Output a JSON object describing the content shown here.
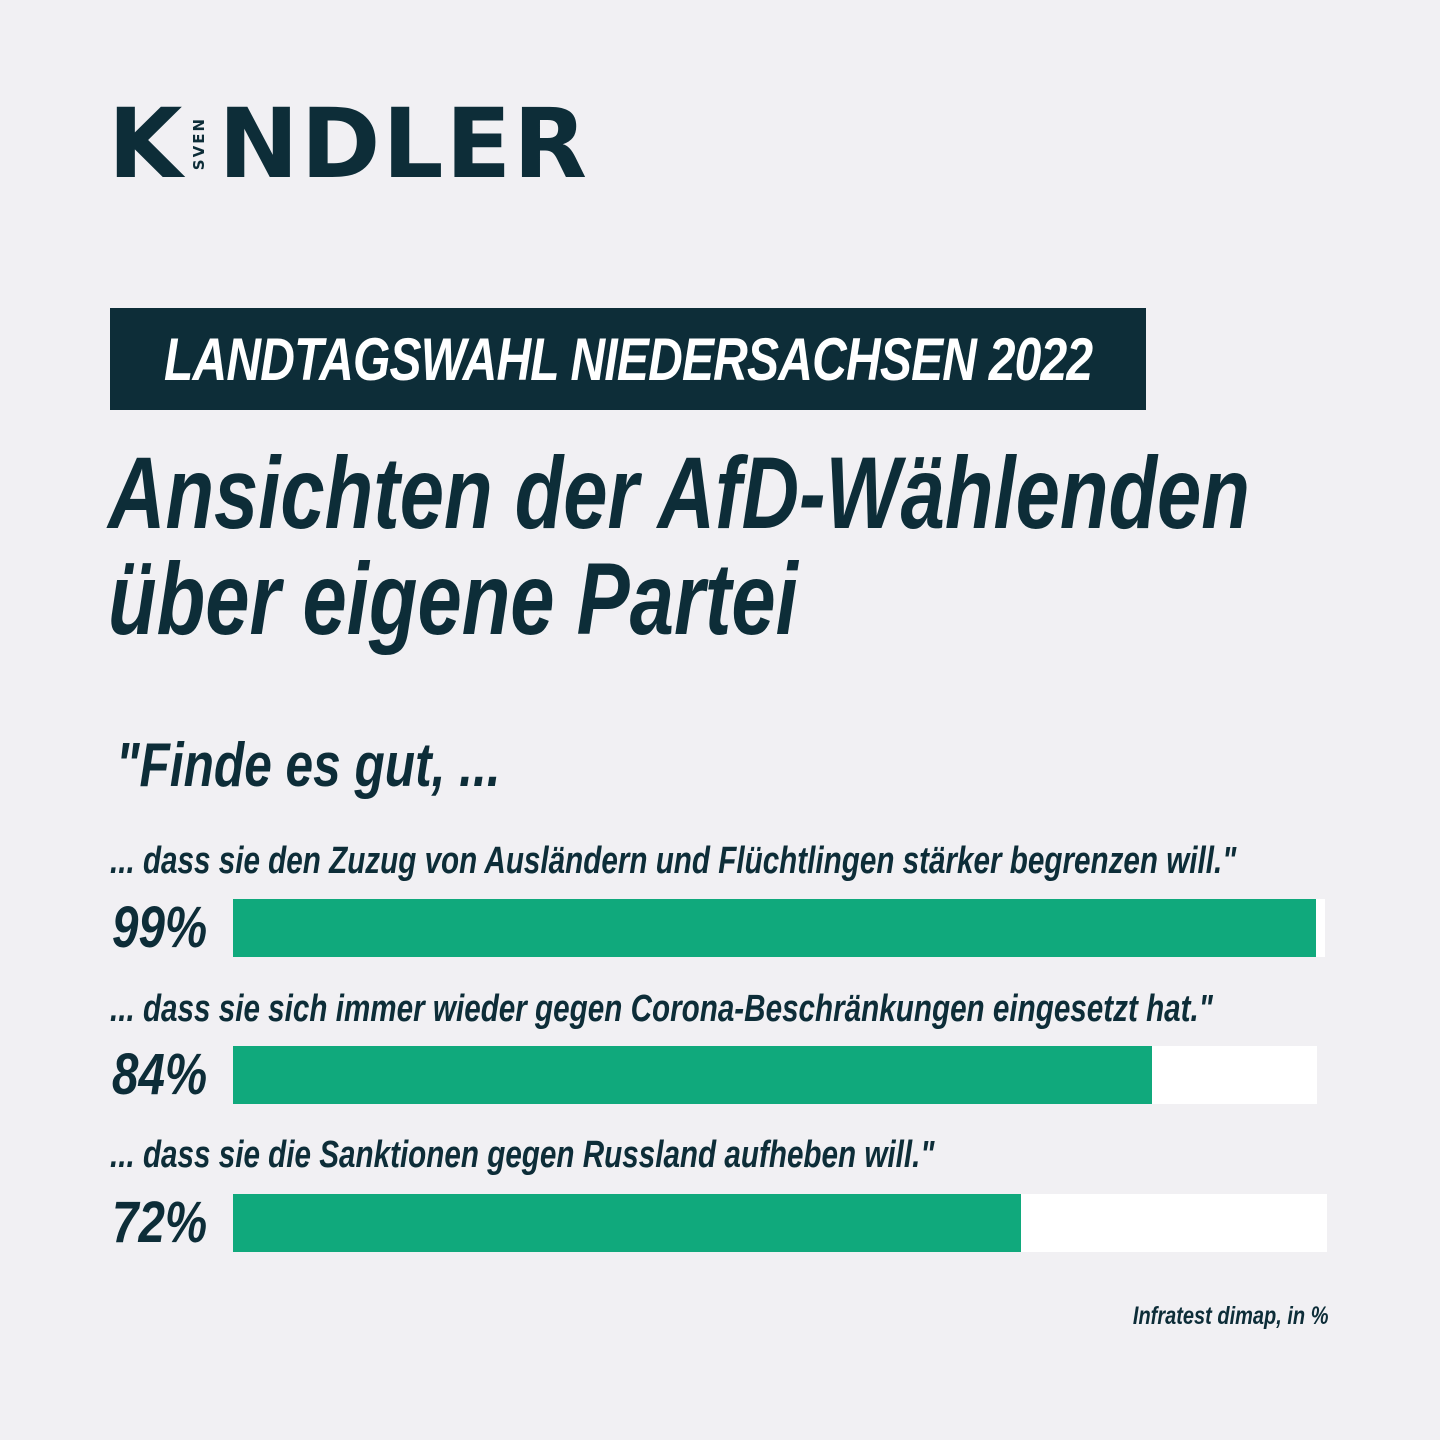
{
  "brand": {
    "initial": "K",
    "first_name": "SVEN",
    "rest": "NDLER"
  },
  "colors": {
    "background": "#f1f0f3",
    "dark": "#0d2d38",
    "accent": "#10a97c",
    "track": "#ffffff"
  },
  "header": {
    "tag": "LANDTAGSWAHL NIEDERSACHSEN 2022",
    "title_line1": "Ansichten der AfD-Wählenden",
    "title_line2": "über eigene Partei"
  },
  "lead": "\"Finde es gut, ...",
  "chart_data": {
    "type": "bar",
    "orientation": "horizontal",
    "categories": [
      "... dass sie den Zuzug von Ausländern und Flüchtlingen stärker begrenzen will.\"",
      "... dass sie sich immer wieder gegen Corona-Beschränkungen eingesetzt hat.\"",
      "... dass sie die Sanktionen gegen Russland aufheben will.\""
    ],
    "values": [
      99,
      84,
      72
    ],
    "value_labels": [
      "99%",
      "84%",
      "72%"
    ],
    "xlim": [
      0,
      100
    ],
    "grid": false
  },
  "source": "Infratest dimap, in %"
}
